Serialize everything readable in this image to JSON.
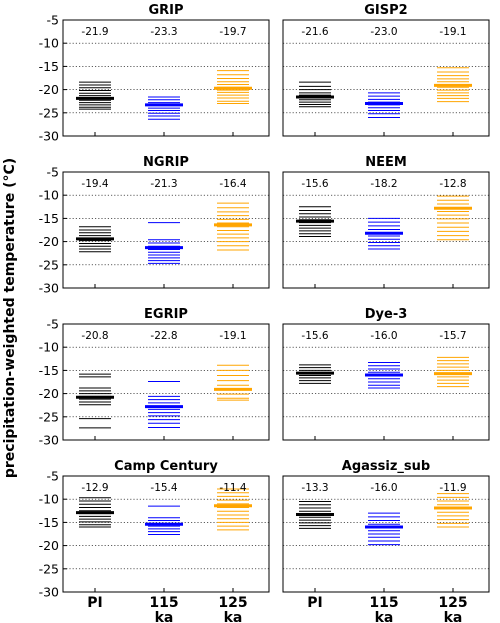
{
  "figure": {
    "ylabel": "precipitation-weighted temperature (°C)",
    "ytick_labels": [
      "-5",
      "-10",
      "-15",
      "-20",
      "-25",
      "-30"
    ],
    "xtick_labels": [
      [
        "PI"
      ],
      [
        "115",
        "ka"
      ],
      [
        "125",
        "ka"
      ]
    ],
    "colors": {
      "PI": "#000000",
      "115 ka": "#0000ff",
      "125 ka": "#ffa500"
    }
  },
  "chart_data": [
    {
      "type": "strip",
      "title": "GRIP",
      "ylim": [
        -30,
        -5
      ],
      "grid": "dotted-horizontal",
      "categories": [
        "PI",
        "115 ka",
        "125 ka"
      ],
      "means": [
        -21.9,
        -23.3,
        -19.7
      ],
      "mean_labels": [
        "-21.9",
        "-23.3",
        "-19.7"
      ],
      "members": [
        [
          -18.4,
          -19.0,
          -19.6,
          -20.2,
          -20.8,
          -21.3,
          -21.8,
          -22.3,
          -22.8,
          -23.3,
          -23.8,
          -24.2
        ],
        [
          -21.6,
          -22.2,
          -22.8,
          -23.4,
          -24.0,
          -24.5,
          -25.1,
          -25.7,
          -26.4
        ],
        [
          -15.9,
          -16.8,
          -17.6,
          -18.3,
          -18.9,
          -19.5,
          -20.1,
          -20.6,
          -21.2,
          -21.8,
          -22.5,
          -23.0
        ]
      ]
    },
    {
      "type": "strip",
      "title": "GISP2",
      "ylim": [
        -30,
        -5
      ],
      "grid": "dotted-horizontal",
      "categories": [
        "PI",
        "115 ka",
        "125 ka"
      ],
      "means": [
        -21.6,
        -23.0,
        -19.1
      ],
      "mean_labels": [
        "-21.6",
        "-23.0",
        "-19.1"
      ],
      "members": [
        [
          -18.4,
          -19.3,
          -20.0,
          -20.7,
          -21.2,
          -21.7,
          -22.2,
          -22.7,
          -23.2,
          -23.7
        ],
        [
          -20.7,
          -21.4,
          -22.1,
          -22.7,
          -23.3,
          -23.9,
          -24.5,
          -25.2,
          -26.0
        ],
        [
          -15.3,
          -16.2,
          -17.0,
          -17.7,
          -18.3,
          -18.9,
          -19.5,
          -20.1,
          -20.7,
          -21.3,
          -21.9,
          -22.6
        ]
      ]
    },
    {
      "type": "strip",
      "title": "NGRIP",
      "ylim": [
        -30,
        -5
      ],
      "grid": "dotted-horizontal",
      "categories": [
        "PI",
        "115 ka",
        "125 ka"
      ],
      "means": [
        -19.4,
        -21.3,
        -16.4
      ],
      "mean_labels": [
        "-19.4",
        "-21.3",
        "-16.4"
      ],
      "members": [
        [
          -16.8,
          -17.5,
          -18.1,
          -18.7,
          -19.3,
          -19.8,
          -20.4,
          -21.0,
          -21.6,
          -22.2
        ],
        [
          -15.9,
          -19.6,
          -20.3,
          -21.0,
          -21.7,
          -22.3,
          -22.9,
          -23.5,
          -24.1,
          -24.7
        ],
        [
          -11.7,
          -12.7,
          -13.6,
          -14.4,
          -15.2,
          -16.0,
          -16.8,
          -17.6,
          -18.4,
          -19.2,
          -20.0,
          -20.9,
          -21.8
        ]
      ]
    },
    {
      "type": "strip",
      "title": "NEEM",
      "ylim": [
        -30,
        -5
      ],
      "grid": "dotted-horizontal",
      "categories": [
        "PI",
        "115 ka",
        "125 ka"
      ],
      "means": [
        -15.6,
        -18.2,
        -12.8
      ],
      "mean_labels": [
        "-15.6",
        "-18.2",
        "-12.8"
      ],
      "members": [
        [
          -12.5,
          -13.3,
          -14.0,
          -14.7,
          -15.3,
          -15.9,
          -16.5,
          -17.1,
          -17.7,
          -18.3,
          -18.9
        ],
        [
          -15.0,
          -15.8,
          -16.6,
          -17.4,
          -18.1,
          -18.8,
          -19.5,
          -20.2,
          -20.9,
          -21.6
        ],
        [
          -10.2,
          -11.1,
          -11.9,
          -12.7,
          -13.5,
          -14.3,
          -15.1,
          -16.0,
          -16.9,
          -17.8,
          -18.7,
          -19.6
        ]
      ]
    },
    {
      "type": "strip",
      "title": "EGRIP",
      "ylim": [
        -30,
        -5
      ],
      "grid": "dotted-horizontal",
      "categories": [
        "PI",
        "115 ka",
        "125 ka"
      ],
      "means": [
        -20.8,
        -22.8,
        -19.1
      ],
      "mean_labels": [
        "-20.8",
        "-22.8",
        "-19.1"
      ],
      "members": [
        [
          -15.8,
          -16.4,
          -18.8,
          -19.4,
          -20.0,
          -20.6,
          -21.2,
          -21.8,
          -22.4,
          -25.4,
          -27.4
        ],
        [
          -17.4,
          -20.6,
          -21.3,
          -22.0,
          -22.7,
          -23.4,
          -24.1,
          -24.8,
          -25.6,
          -26.4,
          -27.3
        ],
        [
          -13.9,
          -15.0,
          -16.1,
          -17.2,
          -18.2,
          -19.2,
          -20.1,
          -21.0,
          -21.4
        ]
      ]
    },
    {
      "type": "strip",
      "title": "Dye-3",
      "ylim": [
        -30,
        -5
      ],
      "grid": "dotted-horizontal",
      "categories": [
        "PI",
        "115 ka",
        "125 ka"
      ],
      "means": [
        -15.6,
        -16.0,
        -15.7
      ],
      "mean_labels": [
        "-15.6",
        "-16.0",
        "-15.7"
      ],
      "members": [
        [
          -13.8,
          -14.4,
          -15.0,
          -15.6,
          -16.1,
          -16.6,
          -17.2,
          -17.8
        ],
        [
          -13.3,
          -14.0,
          -14.7,
          -15.4,
          -16.1,
          -16.8,
          -17.5,
          -18.2,
          -18.8
        ],
        [
          -12.2,
          -12.9,
          -13.6,
          -14.3,
          -15.0,
          -15.7,
          -16.4,
          -17.1,
          -17.8,
          -18.5
        ]
      ]
    },
    {
      "type": "strip",
      "title": "Camp Century",
      "ylim": [
        -30,
        -5
      ],
      "grid": "dotted-horizontal",
      "categories": [
        "PI",
        "115 ka",
        "125 ka"
      ],
      "means": [
        -12.9,
        -15.4,
        -11.4
      ],
      "mean_labels": [
        "-12.9",
        "-15.4",
        "-11.4"
      ],
      "members": [
        [
          -9.7,
          -10.4,
          -11.1,
          -11.8,
          -12.5,
          -13.1,
          -13.7,
          -14.3,
          -14.9,
          -15.5,
          -16.0
        ],
        [
          -11.5,
          -14.0,
          -14.6,
          -15.2,
          -15.8,
          -16.4,
          -17.0,
          -17.6
        ],
        [
          -7.8,
          -8.6,
          -9.4,
          -10.2,
          -11.0,
          -11.8,
          -12.6,
          -13.4,
          -14.2,
          -15.0,
          -15.8,
          -16.6
        ]
      ]
    },
    {
      "type": "strip",
      "title": "Agassiz_sub",
      "ylim": [
        -30,
        -5
      ],
      "grid": "dotted-horizontal",
      "categories": [
        "PI",
        "115 ka",
        "125 ka"
      ],
      "means": [
        -13.3,
        -16.0,
        -11.9
      ],
      "mean_labels": [
        "-13.3",
        "-16.0",
        "-11.9"
      ],
      "members": [
        [
          -10.5,
          -11.2,
          -11.9,
          -12.6,
          -13.3,
          -13.9,
          -14.5,
          -15.1,
          -15.7,
          -16.3
        ],
        [
          -13.0,
          -13.8,
          -14.6,
          -15.4,
          -16.1,
          -16.8,
          -17.5,
          -18.2,
          -19.0,
          -19.8
        ],
        [
          -8.8,
          -9.6,
          -10.4,
          -11.2,
          -12.0,
          -12.8,
          -13.6,
          -14.4,
          -15.2,
          -16.0
        ]
      ]
    }
  ]
}
